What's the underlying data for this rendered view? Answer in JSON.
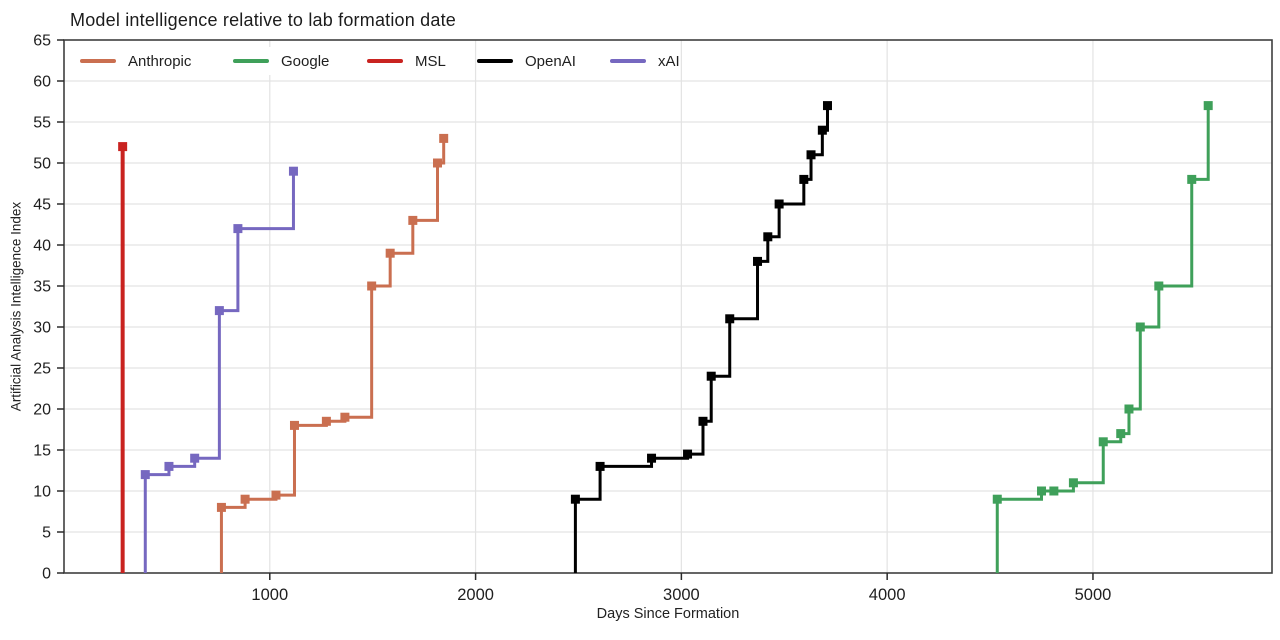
{
  "title": "Model intelligence relative to lab formation date",
  "chart_data": {
    "type": "line",
    "subtype": "step-post",
    "title": "Model intelligence relative to lab formation date",
    "xlabel": "Days Since Formation",
    "ylabel": "Artificial Analysis Intelligence Index",
    "xlim": [
      0,
      5870
    ],
    "ylim": [
      0,
      65
    ],
    "x_ticks": [
      1000,
      2000,
      3000,
      4000,
      5000
    ],
    "y_ticks": [
      0,
      5,
      10,
      15,
      20,
      25,
      30,
      35,
      40,
      45,
      50,
      55,
      60,
      65
    ],
    "grid": true,
    "legend_position": "top-left-inside",
    "note": "Each series starts with a vertical rise from 0 at its first x value; square markers mark each model release (x = days since lab formation, y = Artificial Analysis Intelligence Index).",
    "series": [
      {
        "name": "Anthropic",
        "color": "#CA6F50",
        "points": [
          [
            765,
            8
          ],
          [
            880,
            9
          ],
          [
            1030,
            9.5
          ],
          [
            1120,
            18
          ],
          [
            1275,
            18.5
          ],
          [
            1365,
            19
          ],
          [
            1495,
            35
          ],
          [
            1585,
            39
          ],
          [
            1695,
            43
          ],
          [
            1815,
            50
          ],
          [
            1845,
            53
          ]
        ]
      },
      {
        "name": "Google",
        "color": "#3FA05A",
        "points": [
          [
            4535,
            9
          ],
          [
            4750,
            10
          ],
          [
            4810,
            10
          ],
          [
            4905,
            11
          ],
          [
            5050,
            16
          ],
          [
            5135,
            17
          ],
          [
            5175,
            20
          ],
          [
            5230,
            30
          ],
          [
            5320,
            35
          ],
          [
            5480,
            48
          ],
          [
            5560,
            57
          ]
        ]
      },
      {
        "name": "MSL",
        "color": "#C92320",
        "points": [
          [
            285,
            52
          ]
        ]
      },
      {
        "name": "OpenAI",
        "color": "#000000",
        "points": [
          [
            2485,
            9
          ],
          [
            2605,
            13
          ],
          [
            2855,
            14
          ],
          [
            3030,
            14.5
          ],
          [
            3105,
            18.5
          ],
          [
            3145,
            24
          ],
          [
            3235,
            31
          ],
          [
            3370,
            38
          ],
          [
            3420,
            41
          ],
          [
            3475,
            45
          ],
          [
            3595,
            48
          ],
          [
            3630,
            51
          ],
          [
            3685,
            54
          ],
          [
            3710,
            57
          ]
        ]
      },
      {
        "name": "xAI",
        "color": "#7668C0",
        "points": [
          [
            395,
            12
          ],
          [
            510,
            13
          ],
          [
            635,
            14
          ],
          [
            755,
            32
          ],
          [
            845,
            42
          ],
          [
            1115,
            49
          ]
        ]
      }
    ]
  }
}
